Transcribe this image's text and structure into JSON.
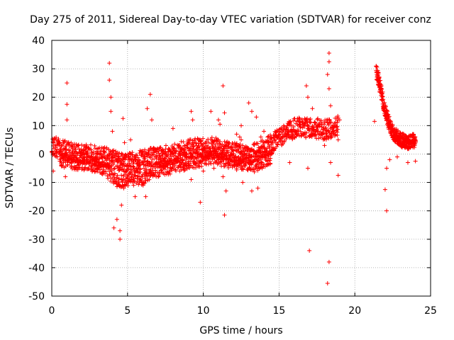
{
  "chart_data": {
    "type": "scatter",
    "title": "Day 275 of 2011, Sidereal Day-to-day VTEC variation (SDTVAR) for receiver conz",
    "xlabel": "GPS time / hours",
    "ylabel": "SDTVAR / TECUs",
    "xlim": [
      0,
      25
    ],
    "ylim": [
      -50,
      40
    ],
    "xticks": [
      0,
      5,
      10,
      15,
      20,
      25
    ],
    "yticks": [
      -50,
      -40,
      -30,
      -20,
      -10,
      0,
      10,
      20,
      30,
      40
    ],
    "grid": true,
    "marker": "+",
    "color": "#ff0000",
    "trend": [
      [
        0.0,
        3
      ],
      [
        0.5,
        2
      ],
      [
        1.0,
        1
      ],
      [
        1.5,
        0.5
      ],
      [
        2.0,
        0
      ],
      [
        2.5,
        0
      ],
      [
        3.0,
        -1
      ],
      [
        3.5,
        -1
      ],
      [
        4.0,
        -2
      ],
      [
        4.5,
        -3
      ],
      [
        5.0,
        -3
      ],
      [
        5.5,
        -2.5
      ],
      [
        6.0,
        -2
      ],
      [
        6.5,
        -1
      ],
      [
        7.0,
        -1
      ],
      [
        7.5,
        -0.5
      ],
      [
        8.0,
        0
      ],
      [
        8.5,
        1
      ],
      [
        9.0,
        1.5
      ],
      [
        9.5,
        2
      ],
      [
        10.0,
        2
      ],
      [
        10.5,
        2.5
      ],
      [
        11.0,
        2
      ],
      [
        11.5,
        1
      ],
      [
        12.0,
        0.5
      ],
      [
        12.5,
        0
      ],
      [
        13.0,
        0
      ],
      [
        13.5,
        0.5
      ],
      [
        14.0,
        2
      ],
      [
        14.5,
        4
      ],
      [
        15.0,
        6
      ],
      [
        15.5,
        8
      ],
      [
        16.0,
        9
      ],
      [
        16.5,
        9.5
      ],
      [
        17.0,
        9
      ],
      [
        17.5,
        9
      ],
      [
        18.0,
        8.5
      ],
      [
        18.5,
        9
      ],
      [
        18.9,
        10
      ]
    ],
    "lower_band": [
      [
        0.5,
        -2
      ],
      [
        1.5,
        -3
      ],
      [
        2.5,
        -3.5
      ],
      [
        3.5,
        -5
      ],
      [
        4.0,
        -8
      ],
      [
        4.5,
        -10
      ],
      [
        5.0,
        -9
      ],
      [
        5.5,
        -8
      ],
      [
        6.0,
        -9
      ],
      [
        6.5,
        -6
      ],
      [
        7.5,
        -5
      ],
      [
        9.0,
        -3
      ],
      [
        10.5,
        -1
      ],
      [
        12.0,
        -3
      ],
      [
        13.5,
        -4
      ],
      [
        14.5,
        -1
      ]
    ],
    "gap_segment": [
      [
        21.4,
        29
      ],
      [
        21.6,
        25
      ],
      [
        21.8,
        20
      ],
      [
        22.0,
        15
      ],
      [
        22.3,
        10
      ],
      [
        22.6,
        7
      ],
      [
        23.0,
        5
      ],
      [
        23.5,
        4
      ],
      [
        24.0,
        5
      ]
    ],
    "spikes": [
      [
        1.0,
        25
      ],
      [
        1.0,
        17.5
      ],
      [
        1.0,
        12
      ],
      [
        0.9,
        -8
      ],
      [
        0.1,
        -6
      ],
      [
        3.8,
        32
      ],
      [
        3.8,
        26
      ],
      [
        3.9,
        20
      ],
      [
        3.9,
        15
      ],
      [
        4.0,
        8
      ],
      [
        4.1,
        -26
      ],
      [
        4.3,
        -23
      ],
      [
        4.5,
        -30
      ],
      [
        4.5,
        -27
      ],
      [
        4.6,
        -18
      ],
      [
        4.7,
        12.5
      ],
      [
        4.8,
        4
      ],
      [
        5.2,
        5
      ],
      [
        5.4,
        -11
      ],
      [
        5.5,
        -15
      ],
      [
        6.2,
        -15
      ],
      [
        6.5,
        21
      ],
      [
        6.3,
        16
      ],
      [
        6.6,
        12
      ],
      [
        8.0,
        9
      ],
      [
        9.2,
        15
      ],
      [
        9.3,
        12
      ],
      [
        9.2,
        -9
      ],
      [
        9.8,
        -17
      ],
      [
        10.0,
        -6
      ],
      [
        10.5,
        15
      ],
      [
        10.7,
        -5
      ],
      [
        11.0,
        12
      ],
      [
        11.1,
        10.5
      ],
      [
        11.3,
        24
      ],
      [
        11.4,
        -21.5
      ],
      [
        11.3,
        -8
      ],
      [
        11.5,
        -13
      ],
      [
        11.4,
        14.5
      ],
      [
        12.2,
        7
      ],
      [
        12.4,
        6
      ],
      [
        12.5,
        5
      ],
      [
        12.5,
        10
      ],
      [
        12.6,
        -10
      ],
      [
        13.0,
        18
      ],
      [
        13.2,
        15
      ],
      [
        13.2,
        -13
      ],
      [
        13.5,
        13
      ],
      [
        13.6,
        -12
      ],
      [
        13.8,
        6
      ],
      [
        14.0,
        8
      ],
      [
        15.5,
        6
      ],
      [
        15.7,
        -3
      ],
      [
        16.8,
        24
      ],
      [
        16.9,
        20
      ],
      [
        17.0,
        12
      ],
      [
        16.9,
        -5
      ],
      [
        17.0,
        -34
      ],
      [
        17.0,
        6.5
      ],
      [
        17.2,
        16
      ],
      [
        18.3,
        35.5
      ],
      [
        18.3,
        32.5
      ],
      [
        18.2,
        28
      ],
      [
        18.3,
        23
      ],
      [
        18.4,
        17
      ],
      [
        18.3,
        12
      ],
      [
        18.3,
        -38
      ],
      [
        18.2,
        -45.5
      ],
      [
        18.4,
        -3
      ],
      [
        18.0,
        3
      ],
      [
        18.9,
        5
      ],
      [
        18.9,
        -7.5
      ],
      [
        19.0,
        12
      ],
      [
        21.3,
        11.5
      ],
      [
        22.1,
        -20
      ],
      [
        22.0,
        -12.5
      ],
      [
        22.1,
        -5
      ],
      [
        22.3,
        -2
      ],
      [
        22.8,
        -1
      ],
      [
        23.5,
        -3
      ],
      [
        24.0,
        -2.5
      ],
      [
        23.9,
        3
      ]
    ]
  }
}
